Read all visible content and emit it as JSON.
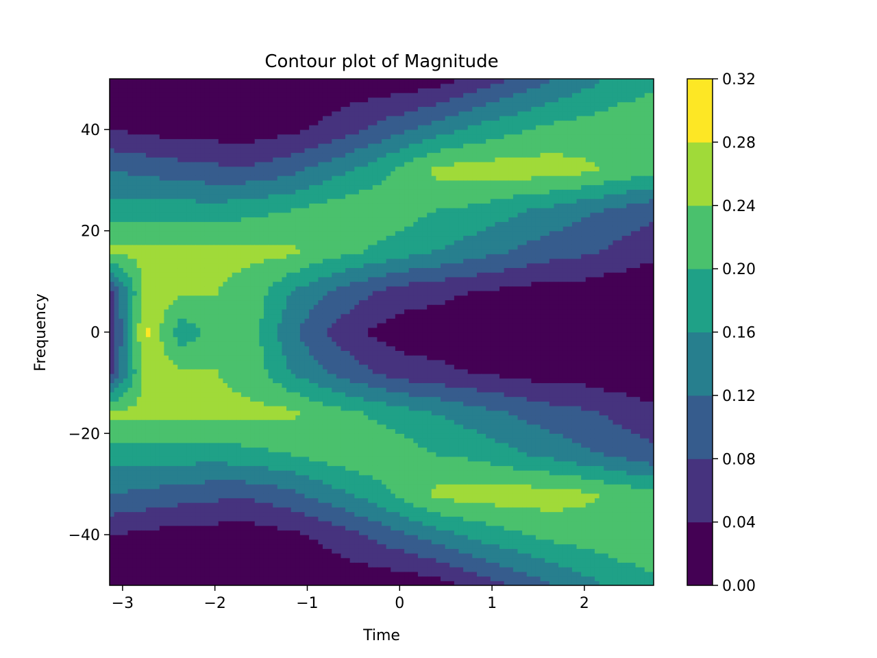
{
  "chart_data": {
    "type": "contour",
    "title": "Contour plot of Magnitude",
    "xlabel": "Time",
    "ylabel": "Frequency",
    "xlim": [
      -3.14,
      2.75
    ],
    "ylim": [
      -50,
      50
    ],
    "x_ticks": [
      -3,
      -2,
      -1,
      0,
      1,
      2
    ],
    "y_ticks": [
      -40,
      -20,
      0,
      20,
      40
    ],
    "levels": [
      0.0,
      0.04,
      0.08,
      0.12,
      0.16,
      0.2,
      0.24,
      0.28,
      0.32
    ],
    "colorbar_ticks": [
      "0.00",
      "0.04",
      "0.08",
      "0.12",
      "0.16",
      "0.20",
      "0.24",
      "0.28",
      "0.32"
    ],
    "colormap": "viridis",
    "level_colors": [
      "#440154",
      "#46337e",
      "#365c8d",
      "#277f8e",
      "#1fa187",
      "#4ac16d",
      "#a0da39",
      "#fde725"
    ],
    "x": [
      -3.14,
      -2.75,
      -2.36,
      -1.96,
      -1.57,
      -1.18,
      -0.79,
      -0.39,
      0.0,
      0.39,
      0.79,
      1.18,
      1.57,
      1.96,
      2.36,
      2.75
    ],
    "y": [
      -50,
      -40,
      -32,
      -24,
      -16,
      -8,
      0,
      8,
      16,
      24,
      32,
      40,
      50
    ],
    "z": [
      [
        0.02,
        0.01,
        0.01,
        0.01,
        0.01,
        0.01,
        0.01,
        0.01,
        0.01,
        0.02,
        0.05,
        0.08,
        0.11,
        0.14,
        0.17,
        0.19
      ],
      [
        0.04,
        0.03,
        0.02,
        0.02,
        0.02,
        0.03,
        0.05,
        0.08,
        0.11,
        0.14,
        0.17,
        0.19,
        0.21,
        0.22,
        0.23,
        0.23
      ],
      [
        0.12,
        0.11,
        0.1,
        0.09,
        0.09,
        0.11,
        0.14,
        0.17,
        0.21,
        0.25,
        0.26,
        0.26,
        0.26,
        0.25,
        0.23,
        0.21
      ],
      [
        0.18,
        0.18,
        0.18,
        0.18,
        0.19,
        0.2,
        0.22,
        0.23,
        0.22,
        0.2,
        0.19,
        0.17,
        0.15,
        0.13,
        0.11,
        0.09
      ],
      [
        0.25,
        0.25,
        0.25,
        0.25,
        0.25,
        0.25,
        0.22,
        0.2,
        0.18,
        0.16,
        0.14,
        0.12,
        0.1,
        0.09,
        0.07,
        0.05
      ],
      [
        0.06,
        0.26,
        0.25,
        0.24,
        0.22,
        0.16,
        0.12,
        0.09,
        0.06,
        0.05,
        0.04,
        0.03,
        0.02,
        0.02,
        0.01,
        0.01
      ],
      [
        0.04,
        0.29,
        0.17,
        0.23,
        0.21,
        0.13,
        0.08,
        0.04,
        0.02,
        0.02,
        0.01,
        0.01,
        0.01,
        0.01,
        0.01,
        0.01
      ],
      [
        0.06,
        0.26,
        0.25,
        0.24,
        0.22,
        0.16,
        0.12,
        0.09,
        0.06,
        0.05,
        0.04,
        0.03,
        0.02,
        0.02,
        0.01,
        0.01
      ],
      [
        0.25,
        0.25,
        0.25,
        0.25,
        0.25,
        0.25,
        0.22,
        0.2,
        0.18,
        0.16,
        0.14,
        0.12,
        0.1,
        0.09,
        0.07,
        0.05
      ],
      [
        0.18,
        0.18,
        0.18,
        0.18,
        0.19,
        0.2,
        0.22,
        0.23,
        0.22,
        0.2,
        0.19,
        0.17,
        0.15,
        0.13,
        0.11,
        0.09
      ],
      [
        0.12,
        0.11,
        0.1,
        0.09,
        0.09,
        0.11,
        0.14,
        0.17,
        0.21,
        0.25,
        0.26,
        0.26,
        0.26,
        0.25,
        0.23,
        0.21
      ],
      [
        0.04,
        0.03,
        0.02,
        0.02,
        0.02,
        0.03,
        0.05,
        0.08,
        0.11,
        0.14,
        0.17,
        0.19,
        0.21,
        0.22,
        0.23,
        0.23
      ],
      [
        0.02,
        0.01,
        0.01,
        0.01,
        0.01,
        0.01,
        0.01,
        0.01,
        0.01,
        0.02,
        0.05,
        0.08,
        0.11,
        0.14,
        0.17,
        0.19
      ]
    ]
  }
}
